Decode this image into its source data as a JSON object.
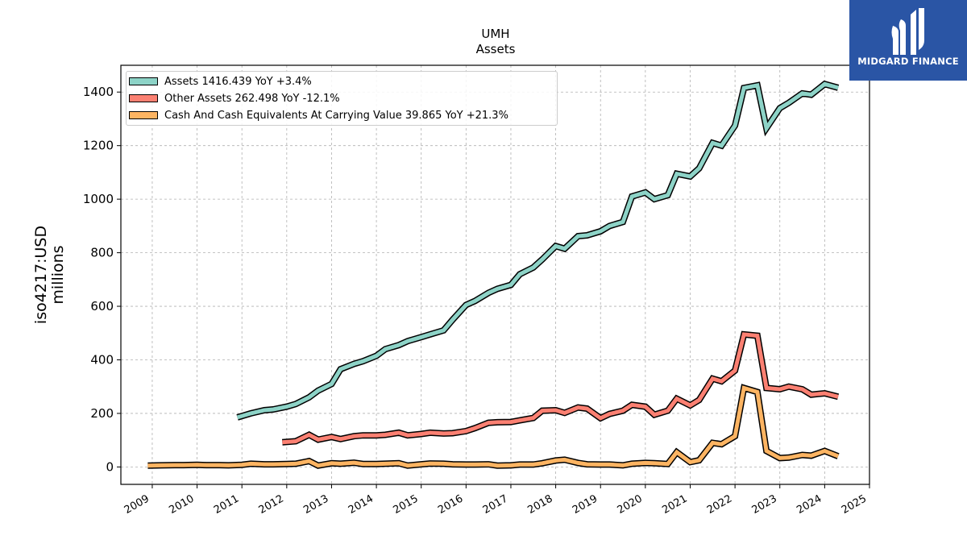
{
  "chart_data": {
    "type": "line",
    "title": "UMH",
    "subtitle": "Assets",
    "ylabel": "iso4217:USD",
    "ylabel_sub": "millions",
    "xlim": [
      2008.3,
      2025.0
    ],
    "ylim": [
      -65,
      1500
    ],
    "yticks": [
      0,
      200,
      400,
      600,
      800,
      1000,
      1200,
      1400
    ],
    "xticks": [
      "2009",
      "2010",
      "2011",
      "2012",
      "2013",
      "2014",
      "2015",
      "2016",
      "2017",
      "2018",
      "2019",
      "2020",
      "2021",
      "2022",
      "2023",
      "2024",
      "2025"
    ],
    "grid": true,
    "legend_position": "top-left",
    "series": [
      {
        "name": "Assets",
        "legend_label": "Assets  1416.439 YoY +3.4%",
        "color": "#8dd3c7",
        "x": [
          2010.9,
          2011.2,
          2011.5,
          2011.7,
          2012.0,
          2012.2,
          2012.5,
          2012.7,
          2013.0,
          2013.2,
          2013.5,
          2013.7,
          2014.0,
          2014.2,
          2014.5,
          2014.7,
          2015.0,
          2015.2,
          2015.5,
          2015.7,
          2016.0,
          2016.2,
          2016.5,
          2016.7,
          2017.0,
          2017.2,
          2017.5,
          2017.7,
          2018.0,
          2018.2,
          2018.5,
          2018.7,
          2019.0,
          2019.2,
          2019.5,
          2019.7,
          2020.0,
          2020.2,
          2020.5,
          2020.7,
          2021.0,
          2021.2,
          2021.5,
          2021.7,
          2022.0,
          2022.2,
          2022.5,
          2022.7,
          2023.0,
          2023.2,
          2023.5,
          2023.7,
          2024.0,
          2024.3
        ],
        "values": [
          185,
          200,
          212,
          215,
          225,
          235,
          260,
          285,
          310,
          365,
          385,
          395,
          415,
          440,
          455,
          470,
          485,
          495,
          510,
          550,
          605,
          620,
          650,
          665,
          680,
          720,
          745,
          775,
          825,
          815,
          862,
          865,
          880,
          900,
          915,
          1010,
          1025,
          1000,
          1015,
          1095,
          1085,
          1115,
          1210,
          1200,
          1275,
          1415,
          1425,
          1265,
          1340,
          1360,
          1395,
          1390,
          1430,
          1416
        ]
      },
      {
        "name": "Other Assets",
        "legend_label": "Other Assets  262.498 YoY -12.1%",
        "color": "#fb8072",
        "x": [
          2011.9,
          2012.2,
          2012.5,
          2012.7,
          2013.0,
          2013.2,
          2013.5,
          2013.7,
          2014.0,
          2014.2,
          2014.5,
          2014.7,
          2015.0,
          2015.2,
          2015.5,
          2015.7,
          2016.0,
          2016.2,
          2016.5,
          2016.7,
          2017.0,
          2017.2,
          2017.5,
          2017.7,
          2018.0,
          2018.2,
          2018.5,
          2018.7,
          2019.0,
          2019.2,
          2019.5,
          2019.7,
          2020.0,
          2020.2,
          2020.5,
          2020.7,
          2021.0,
          2021.2,
          2021.5,
          2021.7,
          2022.0,
          2022.2,
          2022.5,
          2022.7,
          2023.0,
          2023.2,
          2023.5,
          2023.7,
          2024.0,
          2024.3
        ],
        "values": [
          92,
          96,
          120,
          102,
          112,
          104,
          115,
          118,
          118,
          120,
          128,
          118,
          123,
          128,
          125,
          126,
          134,
          145,
          165,
          167,
          168,
          174,
          183,
          210,
          212,
          202,
          222,
          218,
          182,
          198,
          210,
          232,
          225,
          195,
          210,
          255,
          230,
          250,
          330,
          320,
          360,
          495,
          490,
          295,
          290,
          300,
          290,
          270,
          275,
          262
        ]
      },
      {
        "name": "Cash And Cash Equivalents At Carrying Value",
        "legend_label": "Cash And Cash Equivalents At Carrying Value  39.865 YoY +21.3%",
        "color": "#fdb462",
        "x": [
          2008.9,
          2009.2,
          2009.5,
          2009.7,
          2010.0,
          2010.2,
          2010.5,
          2010.7,
          2011.0,
          2011.2,
          2011.5,
          2011.7,
          2012.0,
          2012.2,
          2012.5,
          2012.7,
          2013.0,
          2013.2,
          2013.5,
          2013.7,
          2014.0,
          2014.2,
          2014.5,
          2014.7,
          2015.0,
          2015.2,
          2015.5,
          2015.7,
          2016.0,
          2016.2,
          2016.5,
          2016.7,
          2017.0,
          2017.2,
          2017.5,
          2017.7,
          2018.0,
          2018.2,
          2018.5,
          2018.7,
          2019.0,
          2019.2,
          2019.5,
          2019.7,
          2020.0,
          2020.2,
          2020.5,
          2020.7,
          2021.0,
          2021.2,
          2021.5,
          2021.7,
          2022.0,
          2022.2,
          2022.5,
          2022.7,
          2023.0,
          2023.2,
          2023.5,
          2023.7,
          2024.0,
          2024.3
        ],
        "values": [
          5,
          6,
          7,
          7,
          8,
          7,
          7,
          6,
          8,
          12,
          10,
          10,
          11,
          12,
          22,
          5,
          14,
          12,
          16,
          11,
          11,
          12,
          14,
          5,
          10,
          13,
          12,
          10,
          9,
          9,
          10,
          5,
          6,
          9,
          9,
          14,
          24,
          27,
          15,
          10,
          9,
          9,
          6,
          12,
          15,
          14,
          11,
          55,
          18,
          25,
          90,
          85,
          115,
          295,
          280,
          60,
          33,
          35,
          45,
          42,
          60,
          40
        ]
      }
    ]
  },
  "brand": {
    "name": "MIDGARD FINANCE"
  }
}
